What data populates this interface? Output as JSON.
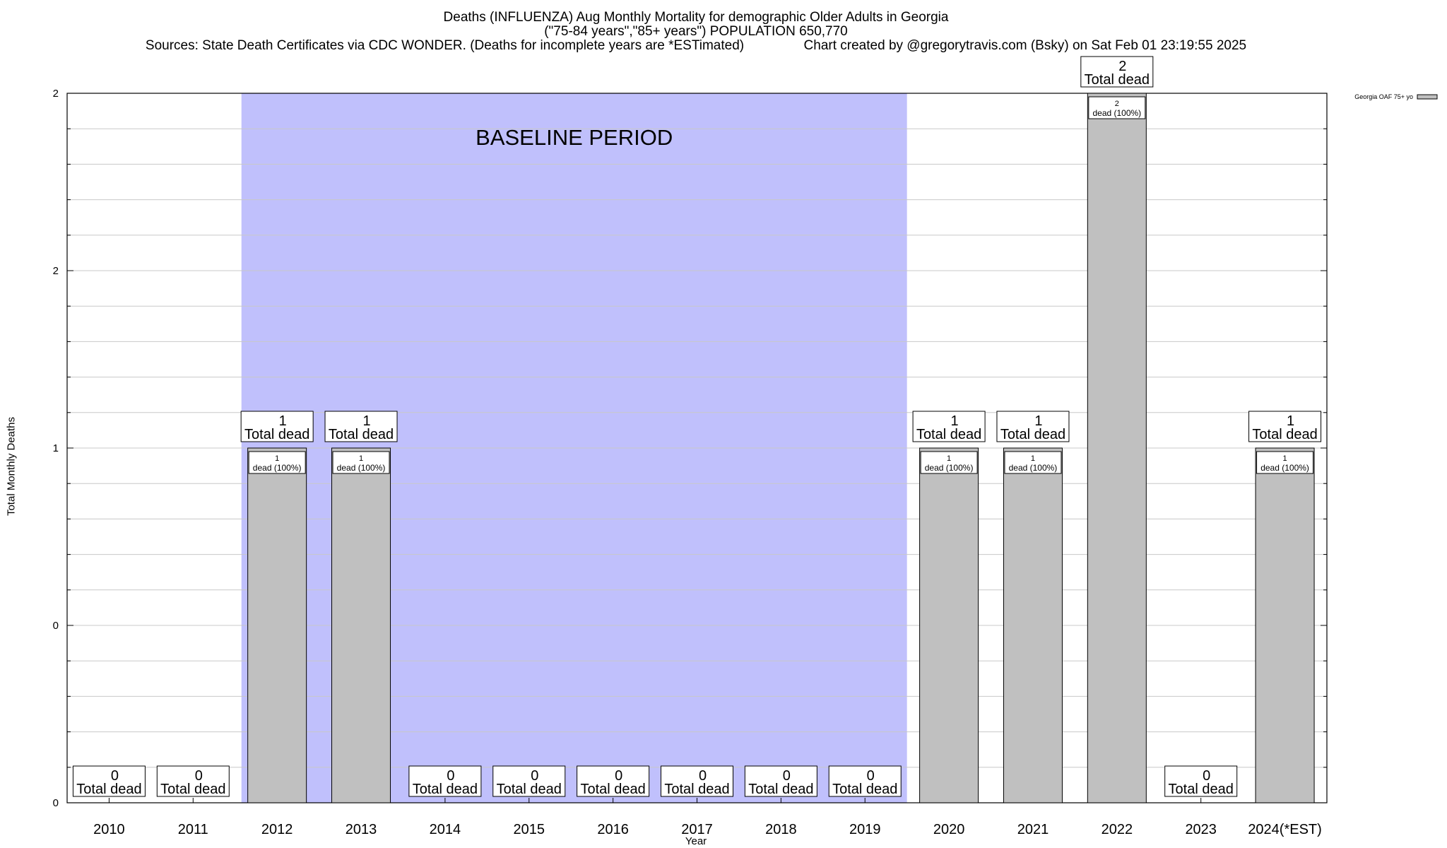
{
  "title_lines": [
    "Deaths (INFLUENZA) Aug Monthly Mortality for demographic Older Adults in Georgia",
    "(\"75-84 years\",\"85+ years\") POPULATION 650,770",
    "Sources: State Death Certificates via CDC WONDER. (Deaths for incomplete years are *ESTimated)                Chart created by @gregorytravis.com (Bsky) on Sat Feb 01 23:19:55 2025"
  ],
  "chart_data": {
    "type": "bar",
    "categories": [
      "2010",
      "2011",
      "2012",
      "2013",
      "2014",
      "2015",
      "2016",
      "2017",
      "2018",
      "2019",
      "2020",
      "2021",
      "2022",
      "2023",
      "2024(*EST)"
    ],
    "values": [
      0,
      0,
      1,
      1,
      0,
      0,
      0,
      0,
      0,
      0,
      1,
      1,
      2,
      0,
      1
    ],
    "total_labels": [
      "Total dead"
    ],
    "inner_labels": [
      "dead (100%)"
    ],
    "xlabel": "Year",
    "ylabel": "Total Monthly Deaths",
    "ylim": [
      0,
      2
    ],
    "y_tick_labels": [
      "0",
      "0",
      "1",
      "2",
      "2"
    ],
    "legend": {
      "label": "Georgia OAF 75+ yo",
      "placement": "top-right"
    },
    "baseline": {
      "label": "BASELINE PERIOD",
      "from": "2012",
      "to": "2019"
    },
    "grid": true,
    "colors": {
      "bar": "#c0c0c0",
      "baseline": "#c0c0fc",
      "grid": "#c8c8c8"
    }
  }
}
